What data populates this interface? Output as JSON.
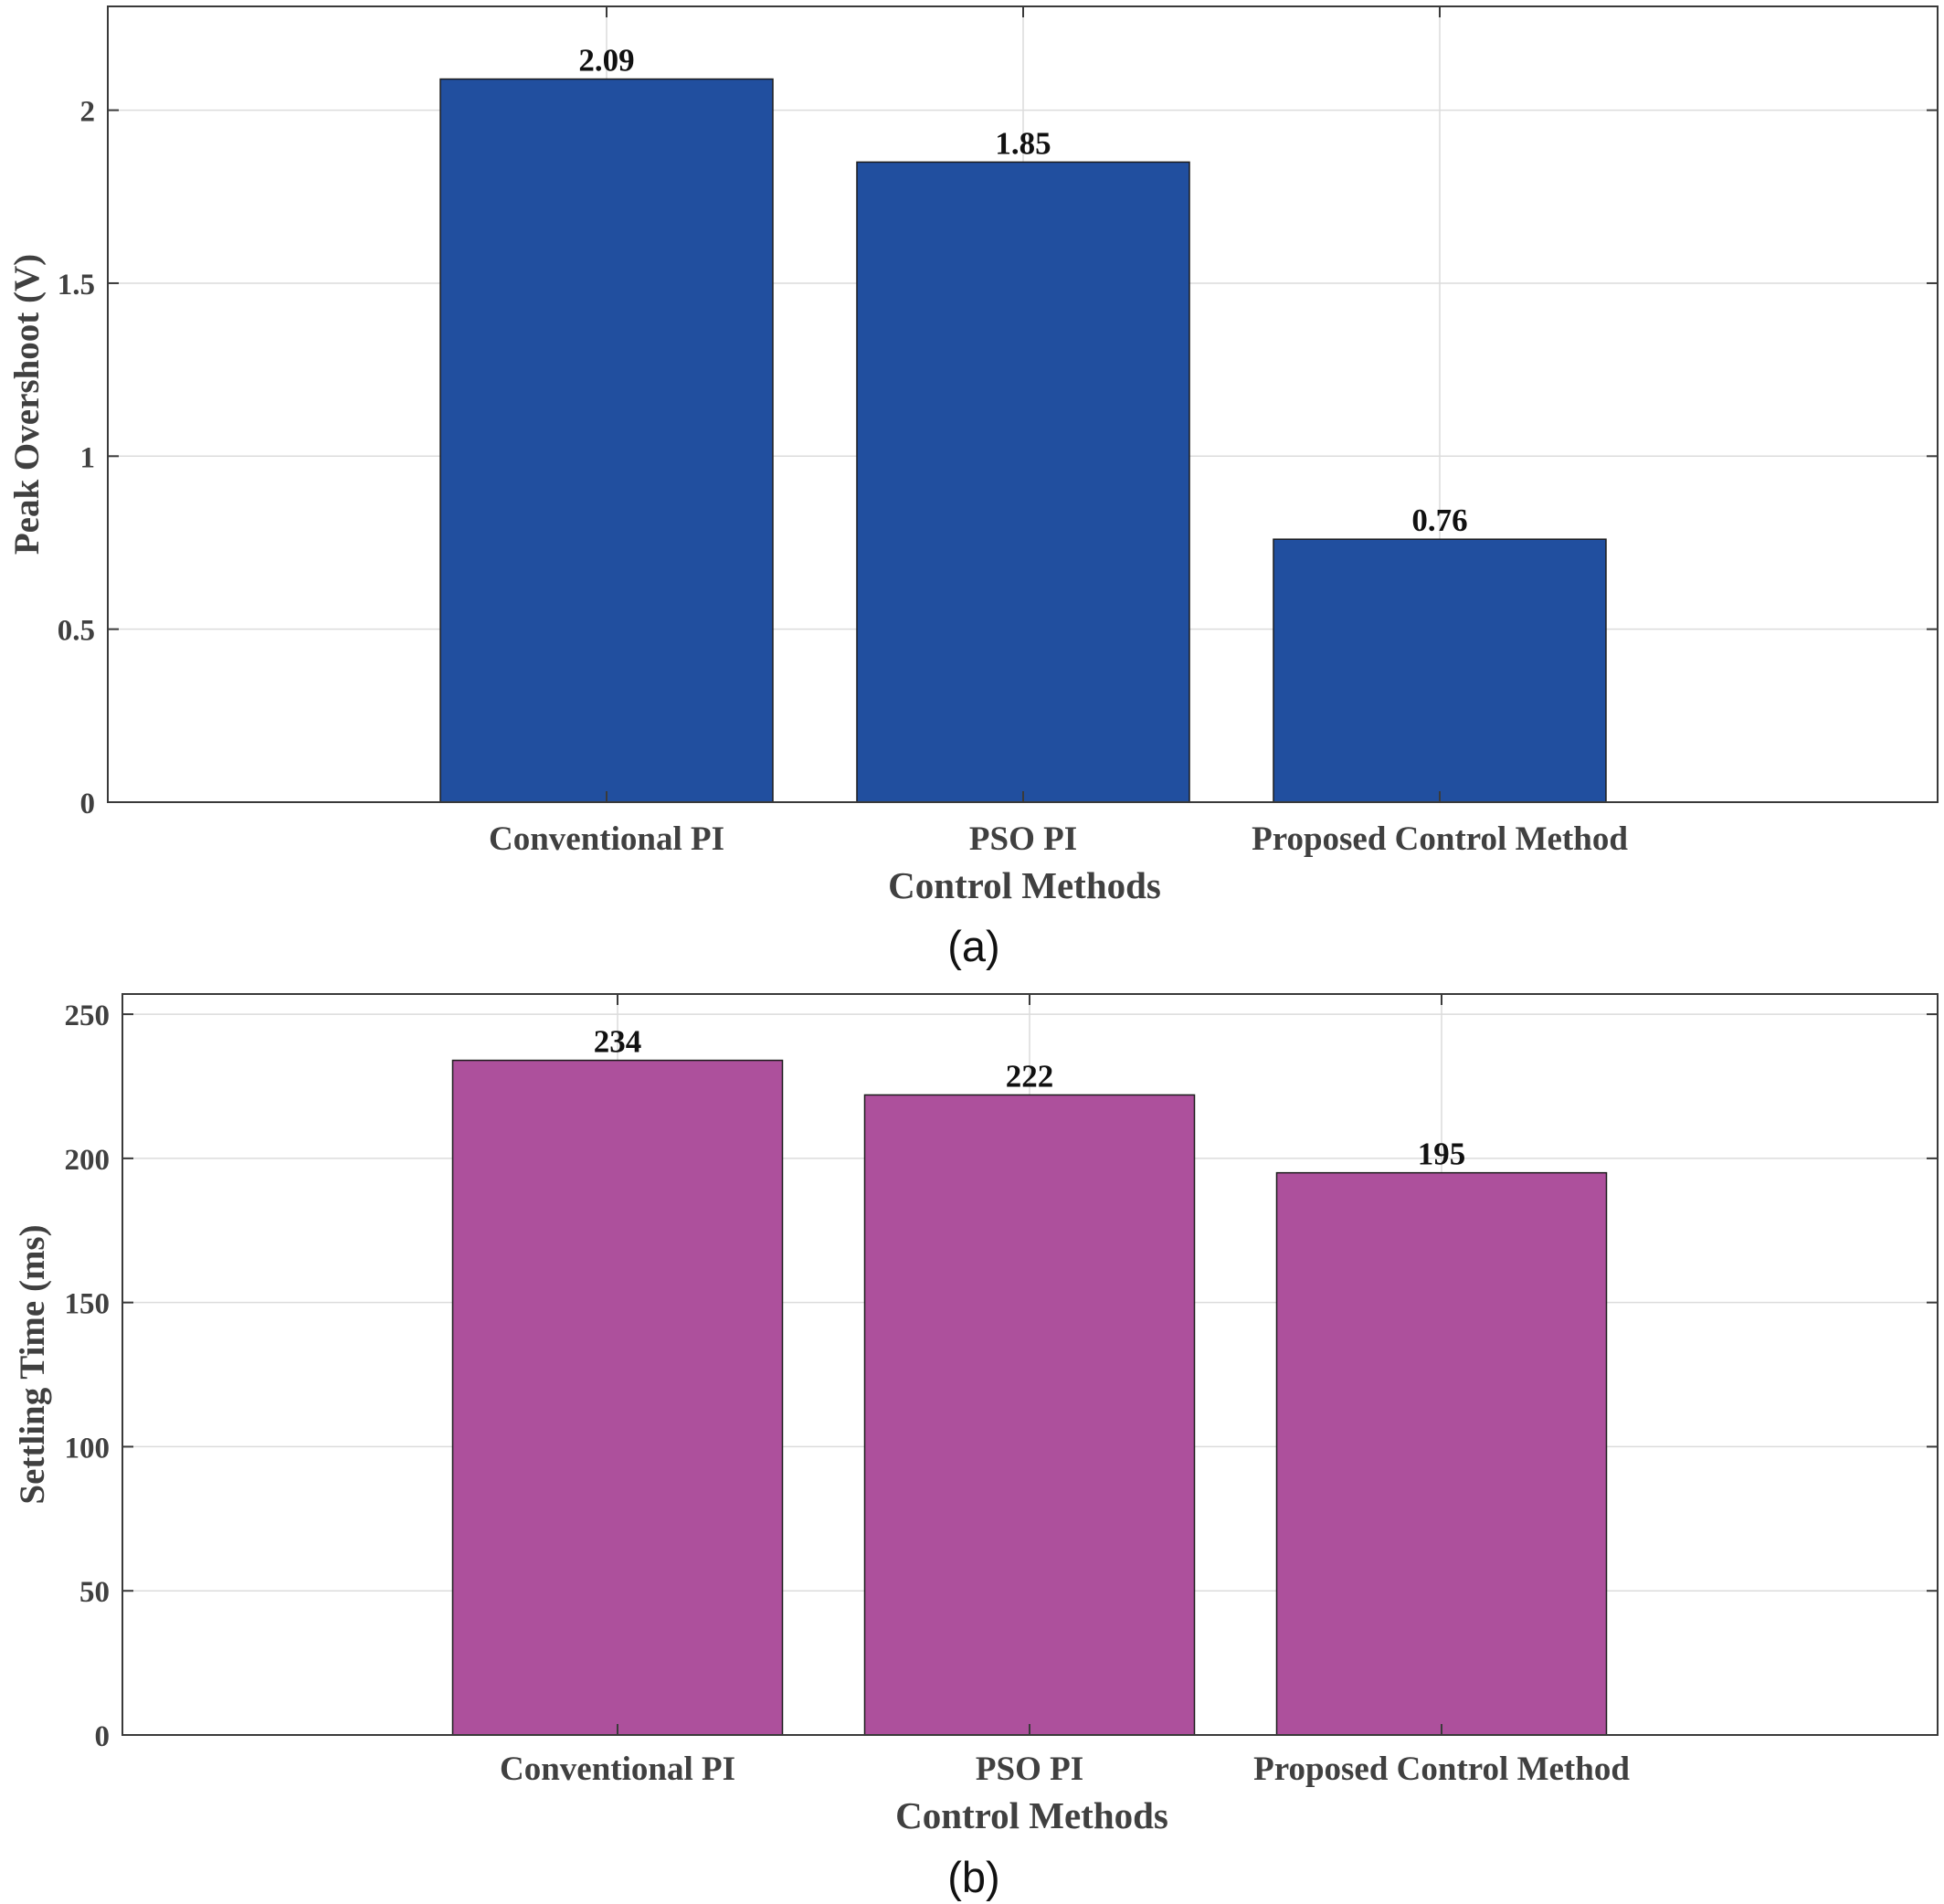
{
  "chart_data": [
    {
      "type": "bar",
      "panel_label": "(a)",
      "categories": [
        "Conventional PI",
        "PSO PI",
        "Proposed Control Method"
      ],
      "values": [
        2.09,
        1.85,
        0.76
      ],
      "value_labels": [
        "2.09",
        "1.85",
        "0.76"
      ],
      "title": "",
      "xlabel": "Control Methods",
      "ylabel": "Peak Overshoot (V)",
      "ylim": [
        0,
        2.3
      ],
      "yticks": [
        0,
        0.5,
        1,
        1.5,
        2
      ],
      "ytick_labels": [
        "0",
        "0.5",
        "1",
        "1.5",
        "2"
      ],
      "grid": true,
      "legend": "none",
      "bar_color": "#214f9f"
    },
    {
      "type": "bar",
      "panel_label": "(b)",
      "categories": [
        "Conventional PI",
        "PSO PI",
        "Proposed Control Method"
      ],
      "values": [
        234,
        222,
        195
      ],
      "value_labels": [
        "234",
        "222",
        "195"
      ],
      "title": "",
      "xlabel": "Control Methods",
      "ylabel": "Settling Time (ms)",
      "ylim": [
        0,
        257
      ],
      "yticks": [
        0,
        50,
        100,
        150,
        200,
        250
      ],
      "ytick_labels": [
        "0",
        "50",
        "100",
        "150",
        "200",
        "250"
      ],
      "grid": true,
      "legend": "none",
      "bar_color": "#ad509c"
    }
  ]
}
